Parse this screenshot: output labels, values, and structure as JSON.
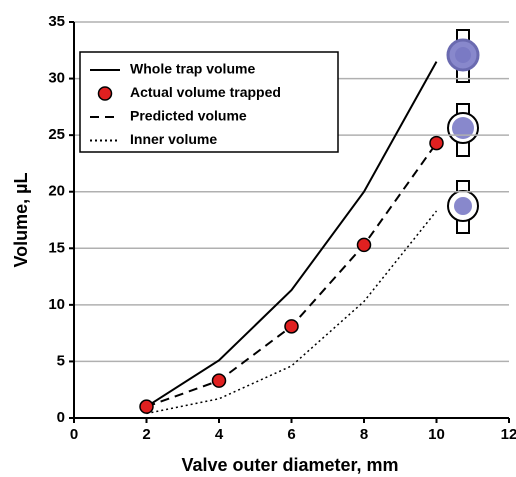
{
  "chart_data": {
    "type": "line",
    "x_label": "Valve outer diameter, mm",
    "y_label": "Volume, µL",
    "x": [
      2,
      4,
      6,
      8,
      10
    ],
    "series": [
      {
        "name": "Whole trap volume",
        "color": "#000000",
        "style": "solid",
        "values": [
          1.0,
          5.1,
          11.3,
          20.0,
          31.5
        ]
      },
      {
        "name": "Actual volume trapped",
        "color": "#e02020",
        "style": "markers",
        "values": [
          1.0,
          3.3,
          8.1,
          15.3,
          24.3
        ]
      },
      {
        "name": "Predicted volume",
        "color": "#000000",
        "style": "dashed",
        "values": [
          1.0,
          3.3,
          8.1,
          15.3,
          24.3
        ]
      },
      {
        "name": "Inner volume",
        "color": "#000000",
        "style": "dotted",
        "values": [
          0.4,
          1.7,
          4.6,
          10.3,
          18.3
        ]
      }
    ],
    "xlim": [
      0,
      12
    ],
    "xticks": [
      0,
      2,
      4,
      6,
      8,
      10,
      12
    ],
    "ylim": [
      0,
      35
    ],
    "yticks": [
      0,
      5,
      10,
      15,
      20,
      25,
      30,
      35
    ],
    "grid": true,
    "legend": "upper left"
  }
}
